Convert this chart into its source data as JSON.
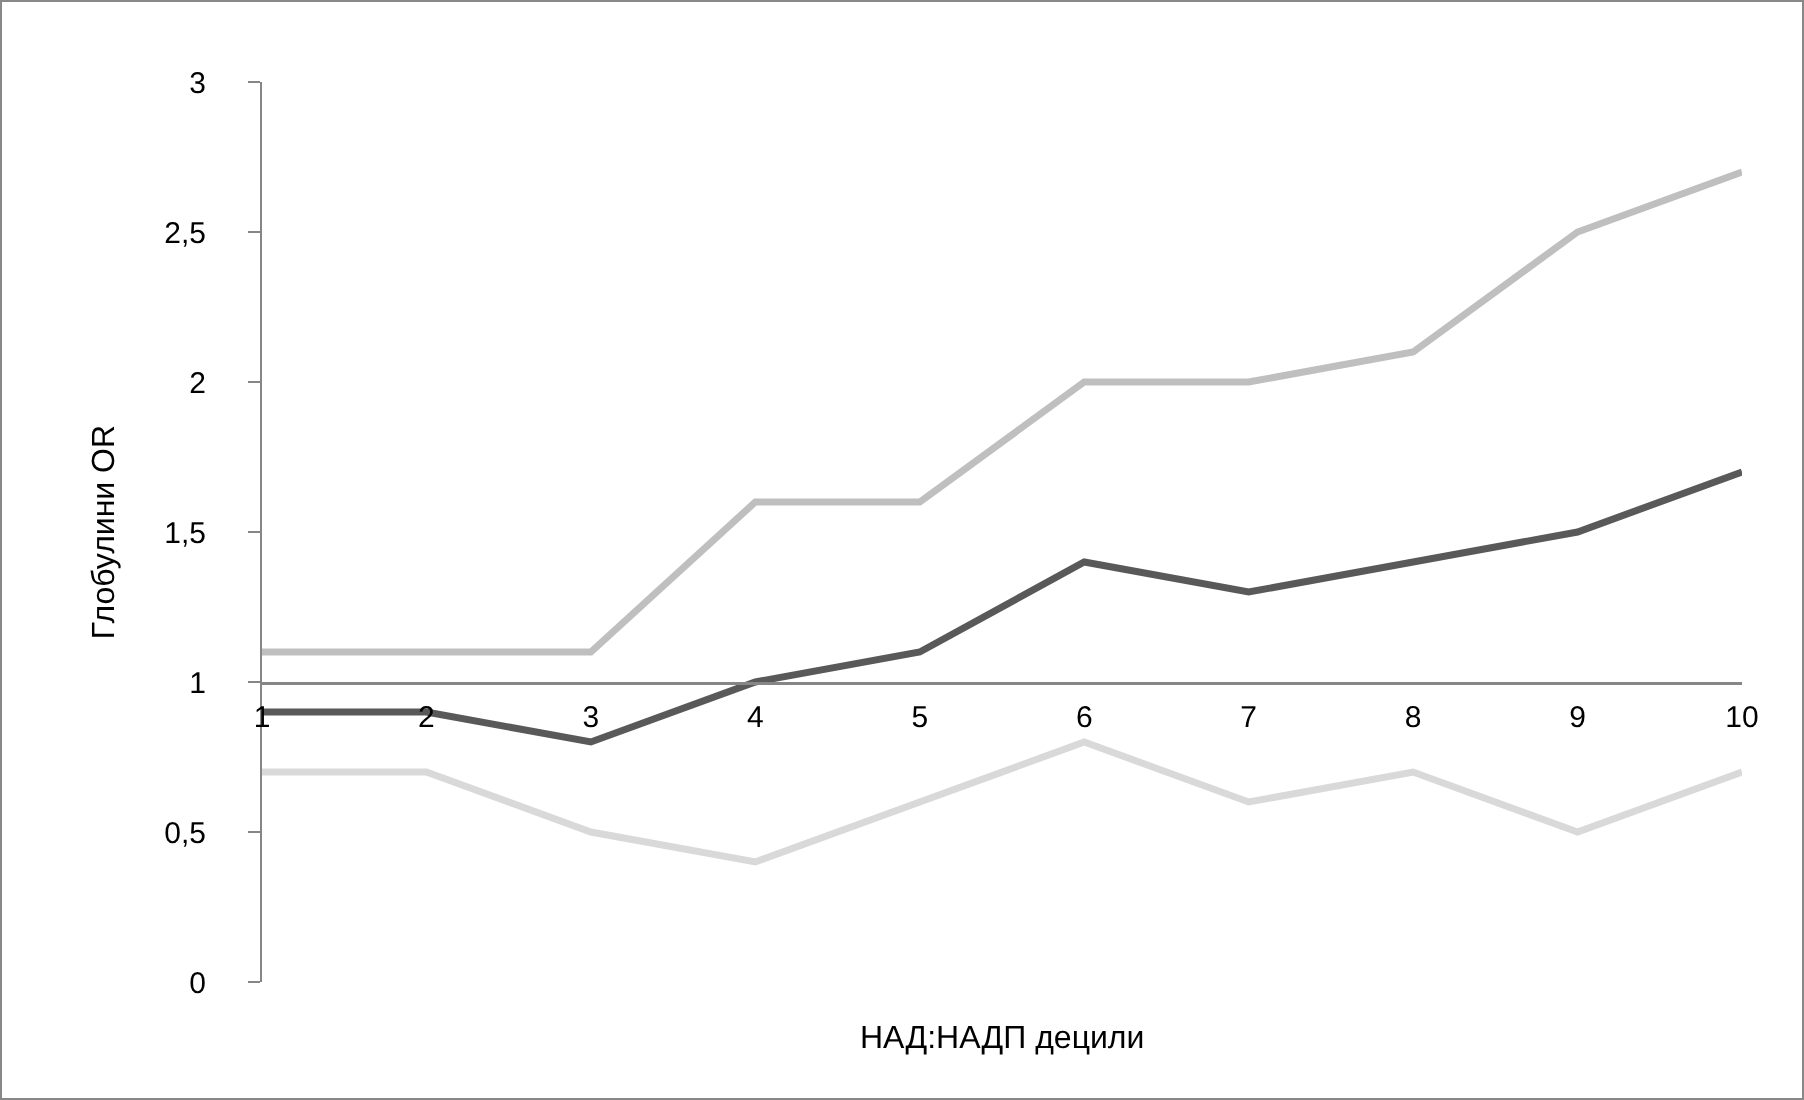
{
  "chart_data": {
    "type": "line",
    "xlabel": "НАД:НАДП децили",
    "ylabel": "Глобулини OR",
    "categories": [
      "1",
      "2",
      "3",
      "4",
      "5",
      "6",
      "7",
      "8",
      "9",
      "10"
    ],
    "series": [
      {
        "color": "#bfbfbf",
        "values": [
          1.1,
          1.1,
          1.1,
          1.6,
          1.6,
          2.0,
          2.0,
          2.1,
          2.5,
          2.7
        ]
      },
      {
        "color": "#595959",
        "values": [
          0.9,
          0.9,
          0.8,
          1.0,
          1.1,
          1.4,
          1.3,
          1.4,
          1.5,
          1.7
        ]
      },
      {
        "color": "#d9d9d9",
        "values": [
          0.7,
          0.7,
          0.5,
          0.4,
          0.6,
          0.8,
          0.6,
          0.7,
          0.5,
          0.7
        ]
      }
    ],
    "ylim": [
      0,
      3
    ],
    "yticks": [
      0,
      {
        "value": 0.5,
        "label": "0,5"
      },
      1,
      {
        "value": 1.5,
        "label": "1,5"
      },
      2,
      {
        "value": 2.5,
        "label": "2,5"
      },
      3
    ],
    "grid": false,
    "marker": "none",
    "line_style": "solid"
  }
}
